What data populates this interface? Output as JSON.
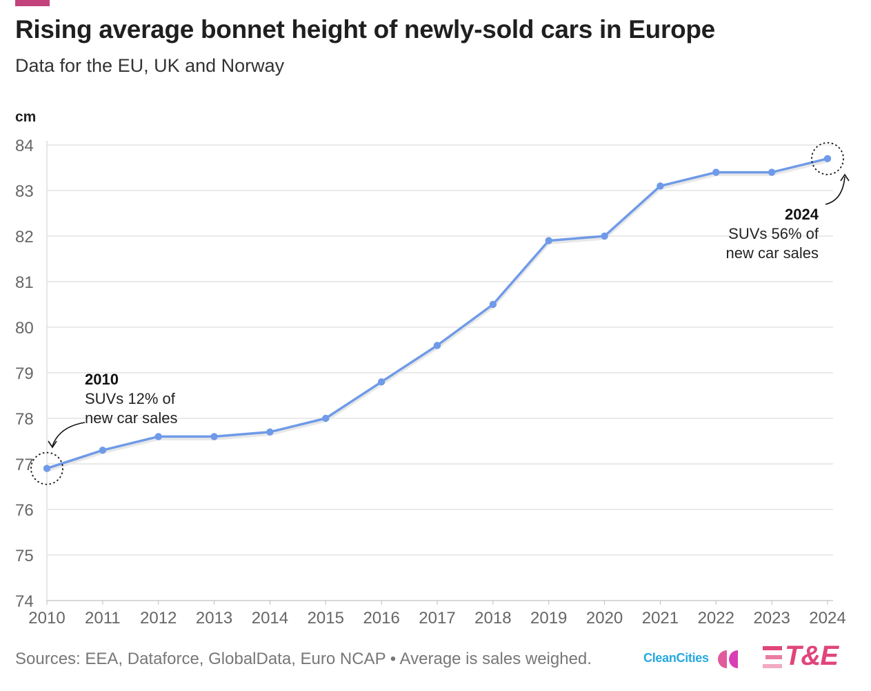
{
  "header": {
    "title": "Rising average bonnet height of newly-sold cars in Europe",
    "subtitle": "Data for the EU, UK and Norway"
  },
  "chart_data": {
    "type": "line",
    "title": "Rising average bonnet height of newly-sold cars in Europe",
    "subtitle": "Data for the EU, UK and Norway",
    "xlabel": "",
    "ylabel": "cm",
    "x": [
      2010,
      2011,
      2012,
      2013,
      2014,
      2015,
      2016,
      2017,
      2018,
      2019,
      2020,
      2021,
      2022,
      2023,
      2024
    ],
    "series": [
      {
        "values": [
          76.9,
          77.3,
          77.6,
          77.6,
          77.7,
          78.0,
          78.8,
          79.6,
          80.5,
          81.9,
          82.0,
          83.1,
          83.4,
          83.4,
          83.7
        ],
        "color": "#6f9ae8"
      }
    ],
    "ylim": [
      74,
      84
    ],
    "yticks": [
      74,
      75,
      76,
      77,
      78,
      79,
      80,
      81,
      82,
      83,
      84
    ],
    "xlim": [
      2010,
      2024
    ],
    "grid": true,
    "legend": "none",
    "annotations": [
      {
        "x": 2010,
        "year": "2010",
        "lines": [
          "SUVs 12% of",
          "new car sales"
        ]
      },
      {
        "x": 2024,
        "year": "2024",
        "lines": [
          "SUVs 56% of",
          "new car sales"
        ]
      }
    ]
  },
  "footer": {
    "sources": "Sources: EEA, Dataforce, GlobalData, Euro NCAP • Average is sales weighed."
  },
  "logos": {
    "cleancities": "CleanCities",
    "te": "T&E"
  },
  "colors": {
    "accent": "#c2427d",
    "line": "#6f9ae8",
    "cleancities_blue": "#26a8e0",
    "te_pink": "#e0457b"
  }
}
